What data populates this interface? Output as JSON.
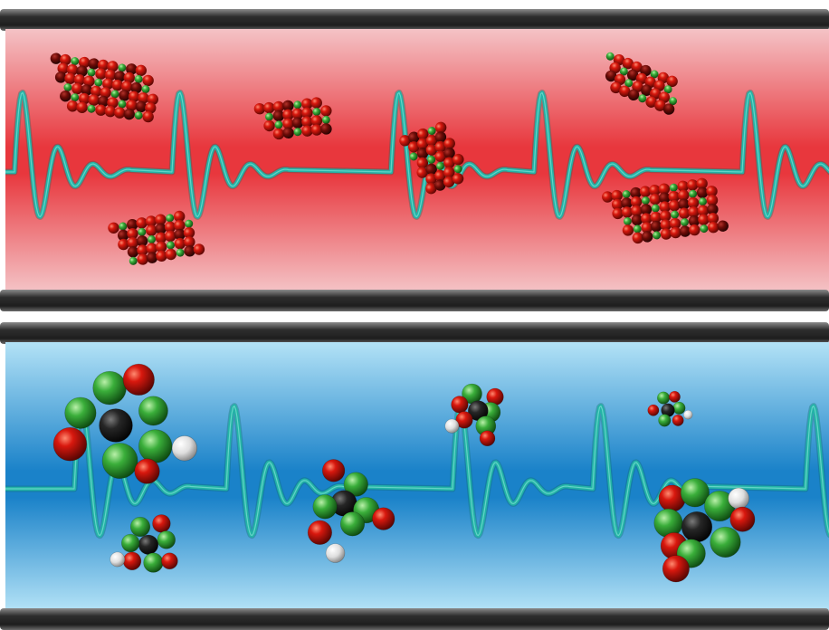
{
  "panels": [
    {
      "name": "red-channel",
      "tone": "red",
      "colors": {
        "edge": "#f2b6b9",
        "core": "#e8373d"
      },
      "content": "crystalline-clusters"
    },
    {
      "name": "blue-channel",
      "tone": "blue",
      "colors": {
        "edge": "#a8dcf2",
        "core": "#1f86cc"
      },
      "content": "discrete-molecules"
    }
  ],
  "colors": {
    "wall": "#3c3c3c",
    "wave": "#23b3a6",
    "atom_red": "#c1140e",
    "atom_green": "#3fae3f",
    "atom_black": "#1c1c1c",
    "atom_white": "#f1f1f1"
  }
}
